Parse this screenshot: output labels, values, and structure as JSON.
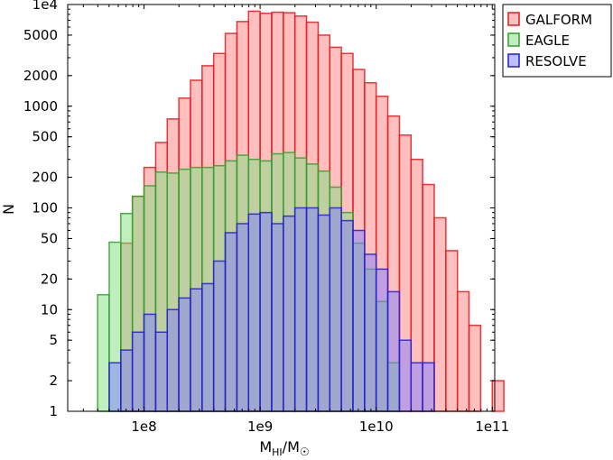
{
  "chart_data": {
    "type": "bar",
    "title": "",
    "xlabel": "M_HI/M_sun",
    "xlabel_main": "M",
    "xlabel_sub": "HI",
    "xlabel_sep": "/M",
    "xlabel_sun": "☉",
    "ylabel": "N",
    "xscale": "log",
    "yscale": "log",
    "xlim": [
      22000000.0,
      105000000000.0
    ],
    "ylim": [
      1,
      10000
    ],
    "x_ticks": [
      {
        "value": 100000000.0,
        "label": "1e8"
      },
      {
        "value": 1000000000.0,
        "label": "1e9"
      },
      {
        "value": 10000000000.0,
        "label": "1e10"
      },
      {
        "value": 100000000000.0,
        "label": "1e11"
      }
    ],
    "y_ticks": [
      {
        "value": 1,
        "label": "1"
      },
      {
        "value": 2,
        "label": "2"
      },
      {
        "value": 5,
        "label": "5"
      },
      {
        "value": 10,
        "label": "10"
      },
      {
        "value": 20,
        "label": "20"
      },
      {
        "value": 50,
        "label": "50"
      },
      {
        "value": 100,
        "label": "100"
      },
      {
        "value": 200,
        "label": "200"
      },
      {
        "value": 500,
        "label": "500"
      },
      {
        "value": 1000,
        "label": "1000"
      },
      {
        "value": 2000,
        "label": "2000"
      },
      {
        "value": 5000,
        "label": "5000"
      },
      {
        "value": 10000,
        "label": "1e4"
      }
    ],
    "legend_position": "outside-top-right",
    "series": [
      {
        "name": "GALFORM",
        "fill": "#ff8080",
        "edge": "#e31a1c",
        "bin_width_log10": 0.1,
        "bins": [
          {
            "log_left": 7.8,
            "value": 45
          },
          {
            "log_left": 7.9,
            "value": 130
          },
          {
            "log_left": 8.0,
            "value": 250
          },
          {
            "log_left": 8.1,
            "value": 440
          },
          {
            "log_left": 8.2,
            "value": 750
          },
          {
            "log_left": 8.3,
            "value": 1200
          },
          {
            "log_left": 8.4,
            "value": 1800
          },
          {
            "log_left": 8.5,
            "value": 2500
          },
          {
            "log_left": 8.6,
            "value": 3300
          },
          {
            "log_left": 8.7,
            "value": 5200
          },
          {
            "log_left": 8.8,
            "value": 6800
          },
          {
            "log_left": 8.9,
            "value": 8600
          },
          {
            "log_left": 9.0,
            "value": 8200
          },
          {
            "log_left": 9.1,
            "value": 8400
          },
          {
            "log_left": 9.2,
            "value": 8300
          },
          {
            "log_left": 9.3,
            "value": 7700
          },
          {
            "log_left": 9.4,
            "value": 6700
          },
          {
            "log_left": 9.5,
            "value": 5000
          },
          {
            "log_left": 9.6,
            "value": 3800
          },
          {
            "log_left": 9.7,
            "value": 3300
          },
          {
            "log_left": 9.8,
            "value": 2300
          },
          {
            "log_left": 9.9,
            "value": 1700
          },
          {
            "log_left": 10.0,
            "value": 1250
          },
          {
            "log_left": 10.1,
            "value": 800
          },
          {
            "log_left": 10.2,
            "value": 520
          },
          {
            "log_left": 10.3,
            "value": 300
          },
          {
            "log_left": 10.4,
            "value": 170
          },
          {
            "log_left": 10.5,
            "value": 80
          },
          {
            "log_left": 10.6,
            "value": 38
          },
          {
            "log_left": 10.7,
            "value": 15
          },
          {
            "log_left": 10.8,
            "value": 7
          },
          {
            "log_left": 11.0,
            "value": 2
          }
        ]
      },
      {
        "name": "EAGLE",
        "fill": "#80e080",
        "edge": "#33a02c",
        "bin_width_log10": 0.1,
        "bins": [
          {
            "log_left": 7.6,
            "value": 14
          },
          {
            "log_left": 7.7,
            "value": 46
          },
          {
            "log_left": 7.8,
            "value": 88
          },
          {
            "log_left": 7.9,
            "value": 130
          },
          {
            "log_left": 8.0,
            "value": 165
          },
          {
            "log_left": 8.1,
            "value": 225
          },
          {
            "log_left": 8.2,
            "value": 220
          },
          {
            "log_left": 8.3,
            "value": 240
          },
          {
            "log_left": 8.4,
            "value": 250
          },
          {
            "log_left": 8.5,
            "value": 250
          },
          {
            "log_left": 8.6,
            "value": 260
          },
          {
            "log_left": 8.7,
            "value": 290
          },
          {
            "log_left": 8.8,
            "value": 330
          },
          {
            "log_left": 8.9,
            "value": 300
          },
          {
            "log_left": 9.0,
            "value": 290
          },
          {
            "log_left": 9.1,
            "value": 340
          },
          {
            "log_left": 9.2,
            "value": 350
          },
          {
            "log_left": 9.3,
            "value": 310
          },
          {
            "log_left": 9.4,
            "value": 270
          },
          {
            "log_left": 9.5,
            "value": 230
          },
          {
            "log_left": 9.6,
            "value": 160
          },
          {
            "log_left": 9.7,
            "value": 90
          },
          {
            "log_left": 9.8,
            "value": 45
          },
          {
            "log_left": 9.9,
            "value": 25
          },
          {
            "log_left": 10.0,
            "value": 12
          },
          {
            "log_left": 10.1,
            "value": 3
          }
        ]
      },
      {
        "name": "RESOLVE",
        "fill": "#8080ff",
        "edge": "#1f1fd0",
        "bin_width_log10": 0.1,
        "bins": [
          {
            "log_left": 7.7,
            "value": 3
          },
          {
            "log_left": 7.8,
            "value": 4
          },
          {
            "log_left": 7.9,
            "value": 6
          },
          {
            "log_left": 8.0,
            "value": 9
          },
          {
            "log_left": 8.1,
            "value": 6
          },
          {
            "log_left": 8.2,
            "value": 10
          },
          {
            "log_left": 8.3,
            "value": 13
          },
          {
            "log_left": 8.4,
            "value": 16
          },
          {
            "log_left": 8.5,
            "value": 18
          },
          {
            "log_left": 8.6,
            "value": 30
          },
          {
            "log_left": 8.7,
            "value": 57
          },
          {
            "log_left": 8.8,
            "value": 70
          },
          {
            "log_left": 8.9,
            "value": 87
          },
          {
            "log_left": 9.0,
            "value": 90
          },
          {
            "log_left": 9.1,
            "value": 70
          },
          {
            "log_left": 9.2,
            "value": 83
          },
          {
            "log_left": 9.3,
            "value": 100
          },
          {
            "log_left": 9.4,
            "value": 100
          },
          {
            "log_left": 9.5,
            "value": 85
          },
          {
            "log_left": 9.6,
            "value": 100
          },
          {
            "log_left": 9.7,
            "value": 75
          },
          {
            "log_left": 9.8,
            "value": 60
          },
          {
            "log_left": 9.9,
            "value": 35
          },
          {
            "log_left": 10.0,
            "value": 25
          },
          {
            "log_left": 10.1,
            "value": 15
          },
          {
            "log_left": 10.2,
            "value": 5
          },
          {
            "log_left": 10.3,
            "value": 3
          },
          {
            "log_left": 10.4,
            "value": 3
          }
        ]
      }
    ]
  }
}
